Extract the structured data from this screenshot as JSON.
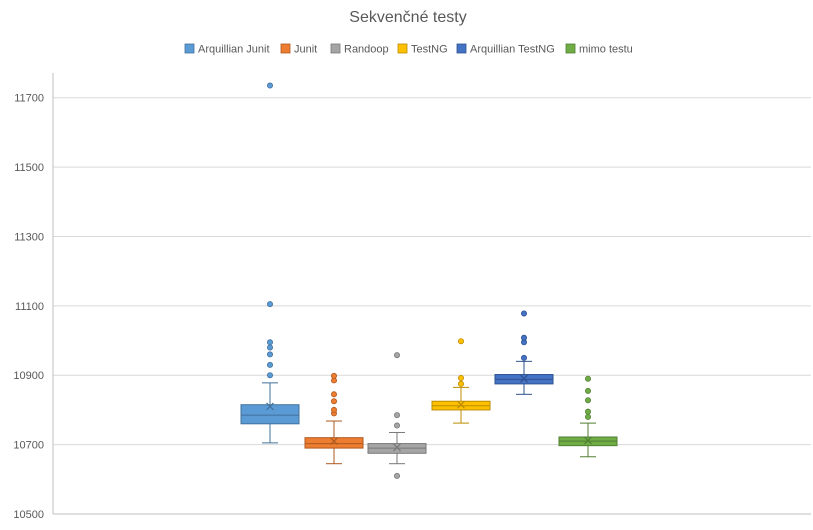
{
  "chart_data": {
    "type": "boxplot",
    "title": "Sekvenčné testy",
    "xlabel": "",
    "ylabel": "",
    "ylim": [
      10500,
      11800
    ],
    "yticks": [
      10500,
      10700,
      10900,
      11100,
      11300,
      11500,
      11700
    ],
    "gridlines": true,
    "legend_position": "top",
    "series": [
      {
        "name": "Arquillian Junit",
        "color": "#5b9bd5",
        "edge": "#41719c",
        "min": 10705,
        "q1": 10760,
        "median": 10785,
        "q3": 10815,
        "max": 10878,
        "mean": 10810,
        "outliers": [
          10900,
          10930,
          10960,
          10980,
          10995,
          11105,
          11735
        ]
      },
      {
        "name": "Junit",
        "color": "#ed7d31",
        "edge": "#ae5a21",
        "min": 10645,
        "q1": 10690,
        "median": 10703,
        "q3": 10720,
        "max": 10768,
        "mean": 10710,
        "outliers": [
          10790,
          10800,
          10825,
          10845,
          10885,
          10898
        ]
      },
      {
        "name": "Randoop",
        "color": "#a5a5a5",
        "edge": "#787878",
        "min": 10645,
        "q1": 10675,
        "median": 10690,
        "q3": 10703,
        "max": 10735,
        "mean": 10692,
        "outliers": [
          10610,
          10755,
          10785,
          10958
        ]
      },
      {
        "name": "TestNG",
        "color": "#ffc000",
        "edge": "#bc8c00",
        "min": 10762,
        "q1": 10800,
        "median": 10812,
        "q3": 10825,
        "max": 10865,
        "mean": 10815,
        "outliers": [
          10875,
          10892,
          10998
        ]
      },
      {
        "name": "Arquillian TestNG",
        "color": "#4472c4",
        "edge": "#2f528f",
        "min": 10845,
        "q1": 10875,
        "median": 10888,
        "q3": 10902,
        "max": 10940,
        "mean": 10890,
        "outliers": [
          10950,
          10995,
          11008,
          11078
        ]
      },
      {
        "name": "mimo testu",
        "color": "#70ad47",
        "edge": "#507e32",
        "min": 10665,
        "q1": 10697,
        "median": 10710,
        "q3": 10722,
        "max": 10762,
        "mean": 10712,
        "outliers": [
          10780,
          10795,
          10828,
          10855,
          10890
        ]
      }
    ]
  }
}
